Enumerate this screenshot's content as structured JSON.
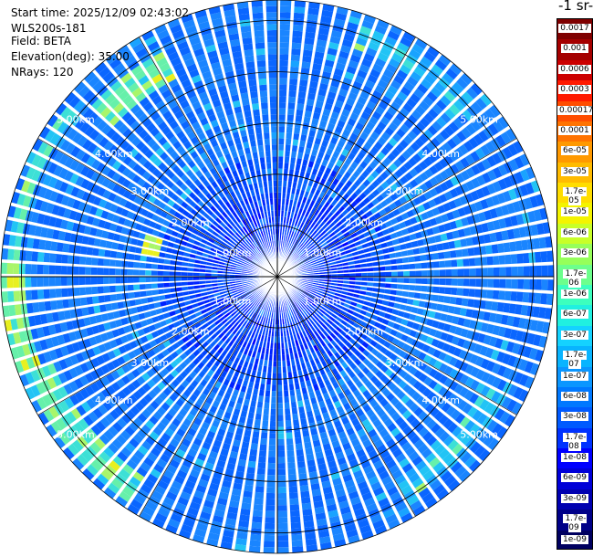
{
  "info": {
    "start_time": "Start time: 2025/12/09 02:43:02",
    "instrument": "WLS200s-181",
    "field": "Field: BETA",
    "elevation": "Elevation(deg): 35.00",
    "nrays": "NRays: 120"
  },
  "plot": {
    "nrays": 120,
    "rings_km": [
      1,
      2,
      3,
      4,
      5
    ],
    "max_range_km": 5.4,
    "ring_label_1": "1.00km",
    "ring_label_2": "2.00km",
    "ring_label_3": "3.00km",
    "ring_label_4": "4.00km",
    "ring_label_5": "5.00km"
  },
  "colorbar": {
    "unit_label": "-1 sr-",
    "ticks": [
      "0.0017",
      "0.001",
      "0.0006",
      "0.0003",
      "0.00017",
      "0.0001",
      "6e-05",
      "3e-05",
      "1.7e-05",
      "1e-05",
      "6e-06",
      "3e-06",
      "1.7e-06",
      "1e-06",
      "6e-07",
      "3e-07",
      "1.7e-07",
      "1e-07",
      "6e-08",
      "3e-08",
      "1.7e-08",
      "1e-08",
      "6e-09",
      "3e-09",
      "1.7e-09",
      "1e-09"
    ],
    "colors": [
      "#7f0000",
      "#a50000",
      "#cc0000",
      "#ff1a00",
      "#ff4d00",
      "#ff7300",
      "#ff9900",
      "#ffbb00",
      "#ffdd00",
      "#f4f400",
      "#c8ff28",
      "#96ff5a",
      "#6cff8c",
      "#3cffbe",
      "#20f0e0",
      "#14d2ff",
      "#08b4ff",
      "#0a96ff",
      "#0078ff",
      "#005aff",
      "#0032ff",
      "#0000ff",
      "#0000d8",
      "#0000b0",
      "#000088",
      "#000060"
    ]
  }
}
